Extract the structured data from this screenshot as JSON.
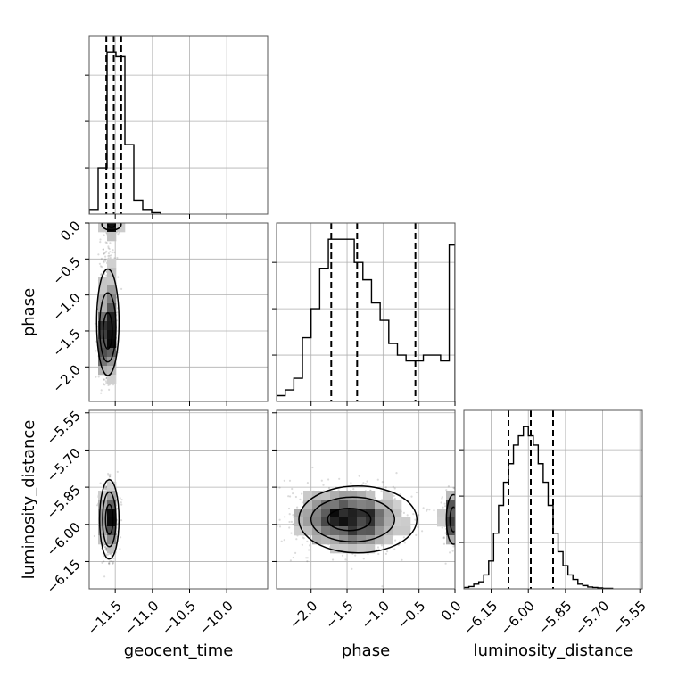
{
  "chart_data": {
    "type": "corner",
    "parameters": [
      "geocent_time",
      "phase",
      "luminosity_distance"
    ],
    "labels": {
      "geocent_time": "geocent_time",
      "phase": "phase",
      "luminosity_distance": "luminosity_distance"
    },
    "ranges": {
      "geocent_time": [
        -11.85,
        -9.45
      ],
      "phase": [
        -2.48,
        0.0
      ],
      "luminosity_distance": [
        -6.26,
        -5.54
      ]
    },
    "ticks": {
      "geocent_time": {
        "values": [
          -11.5,
          -11.0,
          -10.5,
          -10.0
        ],
        "labels": [
          "−11.5",
          "−11.0",
          "−10.5",
          "−10.0"
        ]
      },
      "phase": {
        "values": [
          -2.0,
          -1.5,
          -1.0,
          -0.5,
          0.0
        ],
        "labels": [
          "−2.0",
          "−1.5",
          "−1.0",
          "−0.5",
          "0.0"
        ]
      },
      "luminosity_distance": {
        "values": [
          -6.15,
          -6.0,
          -5.85,
          -5.7,
          -5.55
        ],
        "labels": [
          "−6.15",
          "−6.00",
          "−5.85",
          "−5.70",
          "−5.55"
        ]
      }
    },
    "grid": true,
    "histograms": {
      "geocent_time": {
        "bin_edges": [
          -11.85,
          -11.73,
          -11.61,
          -11.49,
          -11.37,
          -11.25,
          -11.13,
          -11.01,
          -10.89
        ],
        "counts": [
          1,
          10,
          35,
          34,
          15,
          3,
          1,
          0.3
        ],
        "quantiles": [
          -11.62,
          -11.52,
          -11.42
        ]
      },
      "phase": {
        "bin_edges": [
          -2.48,
          -2.36,
          -2.24,
          -2.12,
          -2.0,
          -1.88,
          -1.76,
          -1.64,
          -1.52,
          -1.4,
          -1.28,
          -1.16,
          -1.04,
          -0.92,
          -0.8,
          -0.68,
          -0.56,
          -0.44,
          -0.32,
          -0.2,
          -0.08,
          0.0
        ],
        "counts": [
          1,
          2,
          4,
          11,
          16,
          23,
          28,
          28,
          28,
          24,
          21,
          17,
          14,
          10,
          8,
          7,
          7,
          8,
          8,
          7,
          27
        ],
        "quantiles": [
          -1.72,
          -1.36,
          -0.55
        ]
      },
      "luminosity_distance": {
        "bin_edges": [
          -6.26,
          -6.24,
          -6.22,
          -6.2,
          -6.18,
          -6.16,
          -6.14,
          -6.12,
          -6.1,
          -6.08,
          -6.06,
          -6.04,
          -6.02,
          -6.0,
          -5.98,
          -5.96,
          -5.94,
          -5.92,
          -5.9,
          -5.88,
          -5.86,
          -5.84,
          -5.82,
          -5.8,
          -5.78,
          -5.76,
          -5.74,
          -5.72,
          -5.7,
          -5.68,
          -5.66
        ],
        "counts": [
          0.3,
          0.5,
          1,
          1.5,
          3,
          6,
          12,
          18,
          23,
          27,
          31,
          33,
          35,
          33,
          31,
          27,
          23,
          18,
          12,
          8,
          5,
          3,
          2,
          1,
          0.7,
          0.4,
          0.3,
          0.2,
          0.1,
          0.1
        ],
        "quantiles": [
          -6.08,
          -5.99,
          -5.9
        ]
      }
    },
    "clusters": {
      "geocent_time_phase": [
        {
          "cx": -11.6,
          "cy": -1.55,
          "sx": 0.045,
          "sy": 0.3,
          "n": 1900,
          "rho": 0.15
        },
        {
          "cx": -11.55,
          "cy": -0.05,
          "sx": 0.045,
          "sy": 0.06,
          "n": 300,
          "rho": 0.0
        },
        {
          "cx": -11.6,
          "cy": -0.8,
          "sx": 0.06,
          "sy": 0.45,
          "n": 400,
          "rho": 0.0
        }
      ],
      "geocent_time_luminosity_distance": [
        {
          "cx": -11.58,
          "cy": -5.98,
          "sx": 0.05,
          "sy": 0.065,
          "n": 2400,
          "rho": 0.0
        }
      ],
      "phase_luminosity_distance": [
        {
          "cx": -1.48,
          "cy": -5.98,
          "sx": 0.38,
          "sy": 0.06,
          "n": 2400,
          "rho": 0.0
        },
        {
          "cx": -0.04,
          "cy": -5.98,
          "sx": 0.06,
          "sy": 0.06,
          "n": 400,
          "rho": 0.0
        }
      ]
    },
    "contours": {
      "geocent_time_phase": [
        {
          "cx": -11.6,
          "cy": -1.5,
          "rx": 0.06,
          "ry": 0.25
        },
        {
          "cx": -11.6,
          "cy": -1.45,
          "rx": 0.11,
          "ry": 0.48
        },
        {
          "cx": -11.6,
          "cy": -1.38,
          "rx": 0.15,
          "ry": 0.74
        },
        {
          "cx": -11.55,
          "cy": -0.02,
          "rx": 0.05,
          "ry": 0.04
        },
        {
          "cx": -11.55,
          "cy": -0.02,
          "rx": 0.13,
          "ry": 0.08
        }
      ],
      "geocent_time_luminosity_distance": [
        {
          "cx": -11.58,
          "cy": -5.98,
          "rx": 0.05,
          "ry": 0.06
        },
        {
          "cx": -11.58,
          "cy": -5.98,
          "rx": 0.09,
          "ry": 0.11
        },
        {
          "cx": -11.58,
          "cy": -5.98,
          "rx": 0.13,
          "ry": 0.16
        }
      ],
      "phase_luminosity_distance": [
        {
          "cx": -1.47,
          "cy": -5.98,
          "rx": 0.3,
          "ry": 0.045
        },
        {
          "cx": -1.42,
          "cy": -5.98,
          "rx": 0.58,
          "ry": 0.09
        },
        {
          "cx": -1.35,
          "cy": -5.98,
          "rx": 0.82,
          "ry": 0.135
        },
        {
          "cx": -0.02,
          "cy": -5.98,
          "rx": 0.05,
          "ry": 0.05
        },
        {
          "cx": -0.02,
          "cy": -5.98,
          "rx": 0.1,
          "ry": 0.1
        }
      ]
    }
  }
}
